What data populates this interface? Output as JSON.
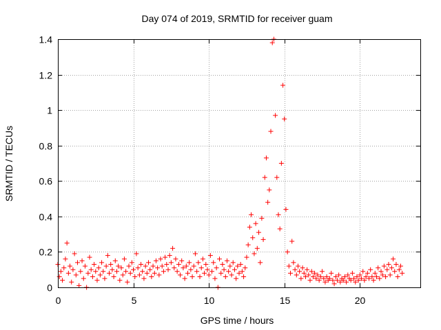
{
  "chart_data": {
    "type": "scatter",
    "title": "Day 074 of 2019, SRMTID for receiver guam",
    "xlabel": "GPS time / hours",
    "ylabel": "SRMTID / TECUs",
    "xlim": [
      0,
      24
    ],
    "ylim": [
      0,
      1.4
    ],
    "x_ticks": [
      0,
      5,
      10,
      15,
      20
    ],
    "x_tick_labels": [
      "0",
      "5",
      "10",
      "15",
      "20"
    ],
    "y_ticks": [
      0,
      0.2,
      0.4,
      0.6,
      0.8,
      1.0,
      1.2,
      1.4
    ],
    "y_tick_labels": [
      "0",
      "0.2",
      "0.4",
      "0.6",
      "0.8",
      "1",
      "1.2",
      "1.4"
    ],
    "grid": true,
    "marker": "+",
    "color": "#ff0000",
    "series": [
      {
        "name": "SRMTID",
        "points": [
          [
            0.0,
            0.13
          ],
          [
            0.1,
            0.06
          ],
          [
            0.2,
            0.09
          ],
          [
            0.3,
            0.04
          ],
          [
            0.4,
            0.11
          ],
          [
            0.5,
            0.16
          ],
          [
            0.6,
            0.25
          ],
          [
            0.7,
            0.08
          ],
          [
            0.8,
            0.12
          ],
          [
            0.9,
            0.03
          ],
          [
            1.0,
            0.1
          ],
          [
            1.1,
            0.19
          ],
          [
            1.2,
            0.07
          ],
          [
            1.3,
            0.14
          ],
          [
            1.4,
            0.01
          ],
          [
            1.5,
            0.09
          ],
          [
            1.6,
            0.15
          ],
          [
            1.7,
            0.05
          ],
          [
            1.8,
            0.12
          ],
          [
            1.9,
            0.0
          ],
          [
            2.0,
            0.08
          ],
          [
            2.1,
            0.17
          ],
          [
            2.2,
            0.1
          ],
          [
            2.3,
            0.06
          ],
          [
            2.4,
            0.13
          ],
          [
            2.5,
            0.09
          ],
          [
            2.6,
            0.04
          ],
          [
            2.7,
            0.11
          ],
          [
            2.8,
            0.07
          ],
          [
            2.9,
            0.14
          ],
          [
            3.0,
            0.09
          ],
          [
            3.1,
            0.05
          ],
          [
            3.2,
            0.12
          ],
          [
            3.3,
            0.18
          ],
          [
            3.4,
            0.08
          ],
          [
            3.5,
            0.13
          ],
          [
            3.6,
            0.1
          ],
          [
            3.7,
            0.06
          ],
          [
            3.8,
            0.15
          ],
          [
            3.9,
            0.09
          ],
          [
            4.0,
            0.12
          ],
          [
            4.1,
            0.04
          ],
          [
            4.2,
            0.11
          ],
          [
            4.3,
            0.07
          ],
          [
            4.4,
            0.16
          ],
          [
            4.5,
            0.09
          ],
          [
            4.6,
            0.03
          ],
          [
            4.7,
            0.12
          ],
          [
            4.8,
            0.08
          ],
          [
            4.9,
            0.14
          ],
          [
            5.0,
            0.1
          ],
          [
            5.1,
            0.06
          ],
          [
            5.2,
            0.19
          ],
          [
            5.3,
            0.11
          ],
          [
            5.4,
            0.07
          ],
          [
            5.5,
            0.13
          ],
          [
            5.6,
            0.09
          ],
          [
            5.7,
            0.05
          ],
          [
            5.8,
            0.12
          ],
          [
            5.9,
            0.08
          ],
          [
            6.0,
            0.14
          ],
          [
            6.1,
            0.1
          ],
          [
            6.2,
            0.06
          ],
          [
            6.3,
            0.12
          ],
          [
            6.4,
            0.08
          ],
          [
            6.5,
            0.15
          ],
          [
            6.6,
            0.11
          ],
          [
            6.7,
            0.07
          ],
          [
            6.8,
            0.16
          ],
          [
            6.9,
            0.12
          ],
          [
            7.0,
            0.09
          ],
          [
            7.1,
            0.17
          ],
          [
            7.2,
            0.13
          ],
          [
            7.3,
            0.1
          ],
          [
            7.4,
            0.18
          ],
          [
            7.5,
            0.14
          ],
          [
            7.6,
            0.22
          ],
          [
            7.7,
            0.11
          ],
          [
            7.8,
            0.16
          ],
          [
            7.9,
            0.09
          ],
          [
            8.0,
            0.13
          ],
          [
            8.1,
            0.07
          ],
          [
            8.2,
            0.15
          ],
          [
            8.3,
            0.11
          ],
          [
            8.4,
            0.05
          ],
          [
            8.5,
            0.12
          ],
          [
            8.6,
            0.08
          ],
          [
            8.7,
            0.14
          ],
          [
            8.8,
            0.1
          ],
          [
            8.9,
            0.06
          ],
          [
            9.0,
            0.12
          ],
          [
            9.1,
            0.19
          ],
          [
            9.2,
            0.09
          ],
          [
            9.3,
            0.14
          ],
          [
            9.4,
            0.06
          ],
          [
            9.5,
            0.11
          ],
          [
            9.6,
            0.16
          ],
          [
            9.7,
            0.08
          ],
          [
            9.8,
            0.13
          ],
          [
            9.9,
            0.1
          ],
          [
            10.0,
            0.07
          ],
          [
            10.1,
            0.18
          ],
          [
            10.2,
            0.09
          ],
          [
            10.3,
            0.14
          ],
          [
            10.4,
            0.05
          ],
          [
            10.5,
            0.11
          ],
          [
            10.6,
            0.0
          ],
          [
            10.7,
            0.16
          ],
          [
            10.8,
            0.08
          ],
          [
            10.9,
            0.13
          ],
          [
            11.0,
            0.1
          ],
          [
            11.1,
            0.06
          ],
          [
            11.2,
            0.15
          ],
          [
            11.3,
            0.09
          ],
          [
            11.4,
            0.12
          ],
          [
            11.5,
            0.07
          ],
          [
            11.6,
            0.14
          ],
          [
            11.7,
            0.1
          ],
          [
            11.8,
            0.05
          ],
          [
            11.9,
            0.12
          ],
          [
            12.0,
            0.08
          ],
          [
            12.1,
            0.13
          ],
          [
            12.2,
            0.09
          ],
          [
            12.3,
            0.06
          ],
          [
            12.4,
            0.11
          ],
          [
            12.5,
            0.17
          ],
          [
            12.6,
            0.24
          ],
          [
            12.7,
            0.34
          ],
          [
            12.8,
            0.41
          ],
          [
            12.9,
            0.28
          ],
          [
            13.0,
            0.19
          ],
          [
            13.1,
            0.36
          ],
          [
            13.2,
            0.22
          ],
          [
            13.3,
            0.31
          ],
          [
            13.4,
            0.14
          ],
          [
            13.5,
            0.39
          ],
          [
            13.6,
            0.27
          ],
          [
            13.7,
            0.62
          ],
          [
            13.8,
            0.73
          ],
          [
            13.9,
            0.48
          ],
          [
            14.0,
            0.55
          ],
          [
            14.1,
            0.88
          ],
          [
            14.2,
            1.38
          ],
          [
            14.3,
            1.4
          ],
          [
            14.4,
            0.97
          ],
          [
            14.5,
            0.62
          ],
          [
            14.6,
            0.41
          ],
          [
            14.7,
            0.33
          ],
          [
            14.8,
            0.7
          ],
          [
            14.9,
            1.14
          ],
          [
            15.0,
            0.95
          ],
          [
            15.1,
            0.44
          ],
          [
            15.2,
            0.2
          ],
          [
            15.3,
            0.12
          ],
          [
            15.4,
            0.08
          ],
          [
            15.5,
            0.26
          ],
          [
            15.6,
            0.14
          ],
          [
            15.7,
            0.1
          ],
          [
            15.8,
            0.07
          ],
          [
            15.9,
            0.12
          ],
          [
            16.0,
            0.09
          ],
          [
            16.1,
            0.05
          ],
          [
            16.2,
            0.11
          ],
          [
            16.3,
            0.08
          ],
          [
            16.4,
            0.06
          ],
          [
            16.5,
            0.1
          ],
          [
            16.6,
            0.07
          ],
          [
            16.7,
            0.04
          ],
          [
            16.8,
            0.09
          ],
          [
            16.9,
            0.06
          ],
          [
            17.0,
            0.08
          ],
          [
            17.1,
            0.05
          ],
          [
            17.2,
            0.07
          ],
          [
            17.3,
            0.04
          ],
          [
            17.4,
            0.06
          ],
          [
            17.5,
            0.09
          ],
          [
            17.6,
            0.05
          ],
          [
            17.7,
            0.03
          ],
          [
            17.8,
            0.06
          ],
          [
            17.9,
            0.04
          ],
          [
            18.0,
            0.05
          ],
          [
            18.1,
            0.08
          ],
          [
            18.2,
            0.04
          ],
          [
            18.3,
            0.02
          ],
          [
            18.4,
            0.06
          ],
          [
            18.5,
            0.04
          ],
          [
            18.6,
            0.07
          ],
          [
            18.7,
            0.03
          ],
          [
            18.8,
            0.05
          ],
          [
            18.9,
            0.04
          ],
          [
            19.0,
            0.06
          ],
          [
            19.1,
            0.03
          ],
          [
            19.2,
            0.07
          ],
          [
            19.3,
            0.05
          ],
          [
            19.4,
            0.04
          ],
          [
            19.5,
            0.08
          ],
          [
            19.6,
            0.05
          ],
          [
            19.7,
            0.03
          ],
          [
            19.8,
            0.06
          ],
          [
            19.9,
            0.04
          ],
          [
            20.0,
            0.07
          ],
          [
            20.1,
            0.05
          ],
          [
            20.2,
            0.09
          ],
          [
            20.3,
            0.04
          ],
          [
            20.4,
            0.06
          ],
          [
            20.5,
            0.08
          ],
          [
            20.6,
            0.05
          ],
          [
            20.7,
            0.1
          ],
          [
            20.8,
            0.06
          ],
          [
            20.9,
            0.04
          ],
          [
            21.0,
            0.08
          ],
          [
            21.1,
            0.06
          ],
          [
            21.2,
            0.11
          ],
          [
            21.3,
            0.05
          ],
          [
            21.4,
            0.09
          ],
          [
            21.5,
            0.07
          ],
          [
            21.6,
            0.12
          ],
          [
            21.7,
            0.06
          ],
          [
            21.8,
            0.1
          ],
          [
            21.9,
            0.13
          ],
          [
            22.0,
            0.07
          ],
          [
            22.1,
            0.11
          ],
          [
            22.2,
            0.16
          ],
          [
            22.3,
            0.09
          ],
          [
            22.4,
            0.13
          ],
          [
            22.5,
            0.06
          ],
          [
            22.6,
            0.1
          ],
          [
            22.7,
            0.12
          ],
          [
            22.8,
            0.08
          ]
        ]
      }
    ]
  }
}
